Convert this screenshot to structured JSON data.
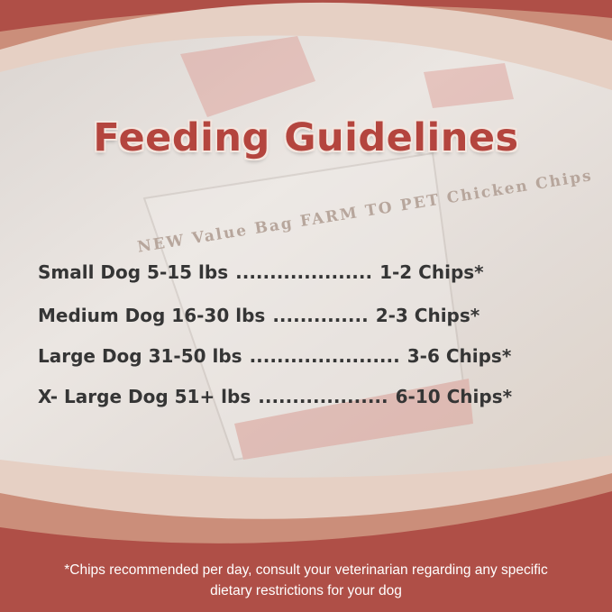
{
  "title": "Feeding Guidelines",
  "guidelines": [
    {
      "size": "Small Dog 5-15 lbs",
      "dots": "....................",
      "amount": "1-2 Chips*"
    },
    {
      "size": "Medium Dog 16-30 lbs",
      "dots": "..............",
      "amount": "2-3 Chips*"
    },
    {
      "size": "Large Dog 31-50 lbs",
      "dots": "......................",
      "amount": "3-6 Chips*"
    },
    {
      "size": "X- Large Dog 51+ lbs",
      "dots": "...................",
      "amount": "6-10 Chips*"
    }
  ],
  "footnote_line1": "*Chips recommended per day, consult your veterinarian regarding any specific",
  "footnote_line2": "dietary restrictions for your dog",
  "colors": {
    "red": "#af4f47",
    "salmon": "#cb8e7a",
    "cream": "#e6d0c4",
    "title": "#b4453e"
  },
  "background_photo_text": "NEW Value Bag FARM TO PET Chicken Chips"
}
